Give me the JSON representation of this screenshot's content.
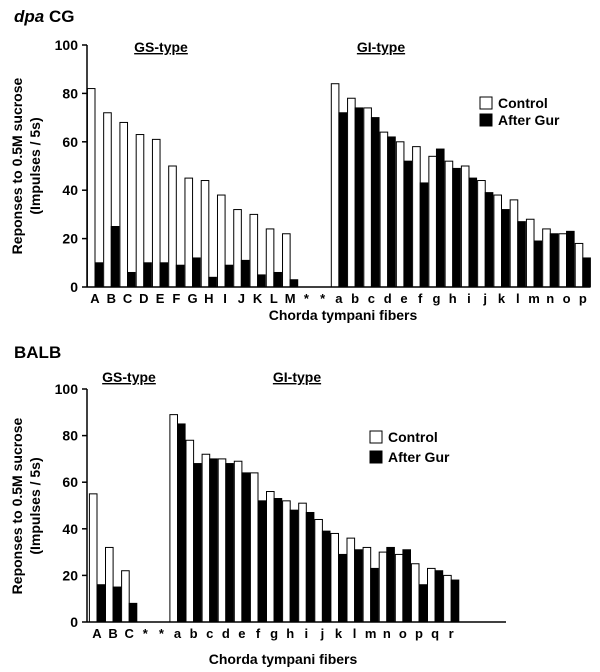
{
  "chart_data": [
    {
      "type": "bar",
      "title_italic": "dpa",
      "title_rest": " CG",
      "xlabel": "Chorda tympani fibers",
      "ylabel_line1": "Reponses to 0.5M sucrose",
      "ylabel_line2": "(Impulses / 5s)",
      "ylim": [
        0,
        100
      ],
      "yticks": [
        0,
        20,
        40,
        60,
        80,
        100
      ],
      "group_labels": [
        "GS-type",
        "GI-type"
      ],
      "legend": [
        "Control",
        "After Gur"
      ],
      "categories": [
        "A",
        "B",
        "C",
        "D",
        "E",
        "F",
        "G",
        "H",
        "I",
        "J",
        "K",
        "L",
        "M",
        "*",
        "*",
        "a",
        "b",
        "c",
        "d",
        "e",
        "f",
        "g",
        "h",
        "i",
        "j",
        "k",
        "l",
        "m",
        "n",
        "o",
        "p"
      ],
      "series": [
        {
          "name": "Control",
          "values": [
            82,
            72,
            68,
            63,
            61,
            50,
            45,
            44,
            38,
            32,
            30,
            24,
            22,
            null,
            null,
            84,
            78,
            74,
            64,
            60,
            58,
            54,
            52,
            50,
            44,
            38,
            36,
            28,
            24,
            22,
            18
          ]
        },
        {
          "name": "After Gur",
          "values": [
            10,
            25,
            6,
            10,
            10,
            9,
            12,
            4,
            9,
            11,
            5,
            6,
            3,
            null,
            null,
            72,
            74,
            70,
            62,
            52,
            43,
            57,
            49,
            45,
            39,
            32,
            27,
            19,
            22,
            23,
            12
          ]
        }
      ]
    },
    {
      "type": "bar",
      "title_italic": "",
      "title_rest": "BALB",
      "xlabel": "Chorda tympani fibers",
      "ylabel_line1": "Reponses to 0.5M sucrose",
      "ylabel_line2": "(Impulses / 5s)",
      "ylim": [
        0,
        100
      ],
      "yticks": [
        0,
        20,
        40,
        60,
        80,
        100
      ],
      "group_labels": [
        "GS-type",
        "GI-type"
      ],
      "legend": [
        "Control",
        "After Gur"
      ],
      "categories": [
        "A",
        "B",
        "C",
        "*",
        "*",
        "a",
        "b",
        "c",
        "d",
        "e",
        "f",
        "g",
        "h",
        "i",
        "j",
        "k",
        "l",
        "m",
        "n",
        "o",
        "p",
        "q",
        "r"
      ],
      "series": [
        {
          "name": "Control",
          "values": [
            55,
            32,
            22,
            null,
            null,
            89,
            78,
            72,
            70,
            69,
            64,
            56,
            52,
            51,
            44,
            38,
            36,
            32,
            30,
            29,
            25,
            23,
            20
          ]
        },
        {
          "name": "After Gur",
          "values": [
            16,
            15,
            8,
            null,
            null,
            85,
            68,
            70,
            68,
            64,
            52,
            53,
            48,
            47,
            39,
            29,
            31,
            23,
            32,
            31,
            16,
            22,
            18
          ]
        }
      ]
    }
  ]
}
